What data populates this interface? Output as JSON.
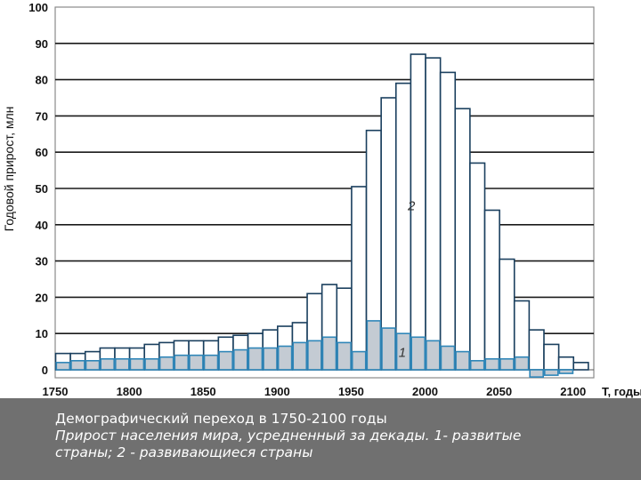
{
  "chart_data": {
    "type": "bar",
    "stacked": false,
    "xlabel": "T, годы",
    "ylabel": "Годовой прирост, млн",
    "xlim": [
      1750,
      2100
    ],
    "ylim": [
      0,
      100
    ],
    "x_ticks": [
      1750,
      1800,
      1850,
      1900,
      1950,
      2000,
      2050,
      2100
    ],
    "y_ticks": [
      0,
      10,
      20,
      30,
      40,
      50,
      60,
      70,
      80,
      90,
      100
    ],
    "grid": "horizontal",
    "x": [
      1750,
      1760,
      1770,
      1780,
      1790,
      1800,
      1810,
      1820,
      1830,
      1840,
      1850,
      1860,
      1870,
      1880,
      1890,
      1900,
      1910,
      1920,
      1930,
      1940,
      1950,
      1960,
      1970,
      1980,
      1990,
      2000,
      2010,
      2020,
      2030,
      2040,
      2050,
      2060,
      2070,
      2080,
      2090,
      2100
    ],
    "series": [
      {
        "label": "2",
        "color_fill": "#ffffff",
        "color_stroke": "#1a3f5e",
        "values": [
          4.5,
          4.5,
          5,
          6,
          6,
          6,
          7,
          7.5,
          8,
          8,
          8,
          9,
          9.5,
          10,
          11,
          12,
          13,
          21,
          23.5,
          22.5,
          50.5,
          66,
          75,
          79,
          87,
          86,
          82,
          72,
          57,
          44,
          30.5,
          19,
          11,
          7,
          3.5,
          2
        ]
      },
      {
        "label": "1",
        "color_fill": "#c4cbd3",
        "color_stroke": "#2f86b8",
        "values": [
          2,
          2.5,
          2.5,
          3,
          3,
          3,
          3,
          3.5,
          4,
          4,
          4,
          5,
          5.5,
          6,
          6,
          6.5,
          7.5,
          8,
          9,
          7.5,
          5,
          13.5,
          11.5,
          10,
          9,
          8,
          6.5,
          5,
          2.5,
          3,
          3,
          3.5,
          -2,
          -1.5,
          -1,
          0
        ]
      }
    ]
  },
  "caption": {
    "title": "Демографический переход в 1750-2100 годы",
    "line2": "Прирост населения мира, усредненный за декады. 1- развитые",
    "line3": "страны; 2 - развивающиеся страны"
  }
}
